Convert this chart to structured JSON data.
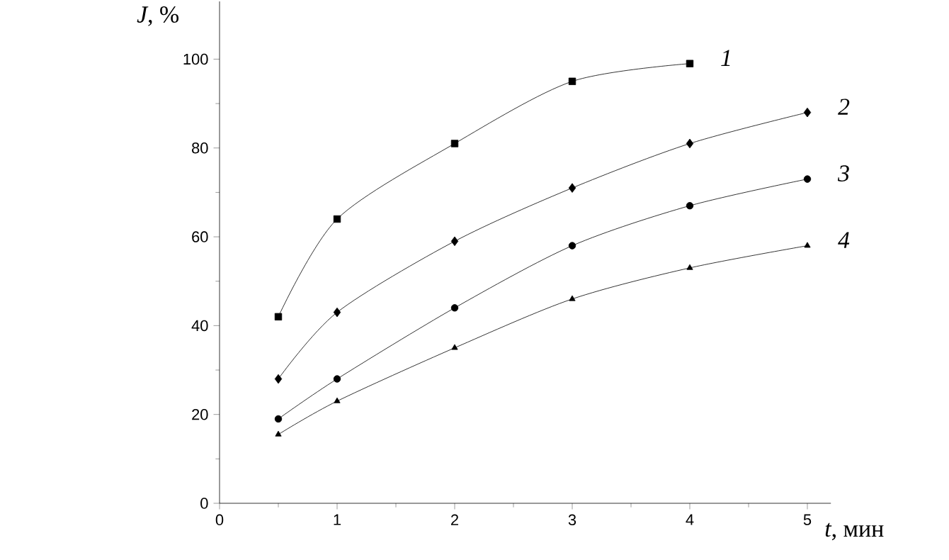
{
  "chart_data": {
    "type": "line",
    "xlabel": "*t*, мин",
    "ylabel": "*J*, %",
    "xlim": [
      0,
      5.2
    ],
    "ylim": [
      0,
      113
    ],
    "xticks": [
      0,
      1,
      2,
      3,
      4,
      5
    ],
    "yticks": [
      0,
      20,
      40,
      60,
      80,
      100
    ],
    "grid": false,
    "legend": false,
    "series": [
      {
        "name": "1",
        "color": "#000000",
        "marker": "square",
        "x": [
          0.5,
          1,
          2,
          3,
          4
        ],
        "values": [
          42,
          64,
          81,
          95,
          99
        ]
      },
      {
        "name": "2",
        "color": "#000000",
        "marker": "diamond",
        "x": [
          0.5,
          1,
          2,
          3,
          4,
          5
        ],
        "values": [
          28,
          43,
          59,
          71,
          81,
          88
        ]
      },
      {
        "name": "3",
        "color": "#000000",
        "marker": "circle",
        "x": [
          0.5,
          1,
          2,
          3,
          4,
          5
        ],
        "values": [
          19,
          28,
          44,
          58,
          67,
          73
        ]
      },
      {
        "name": "4",
        "color": "#000000",
        "marker": "triangle",
        "x": [
          0.5,
          1,
          2,
          3,
          4,
          5
        ],
        "values": [
          15.5,
          23,
          35,
          46,
          53,
          58
        ]
      }
    ]
  }
}
